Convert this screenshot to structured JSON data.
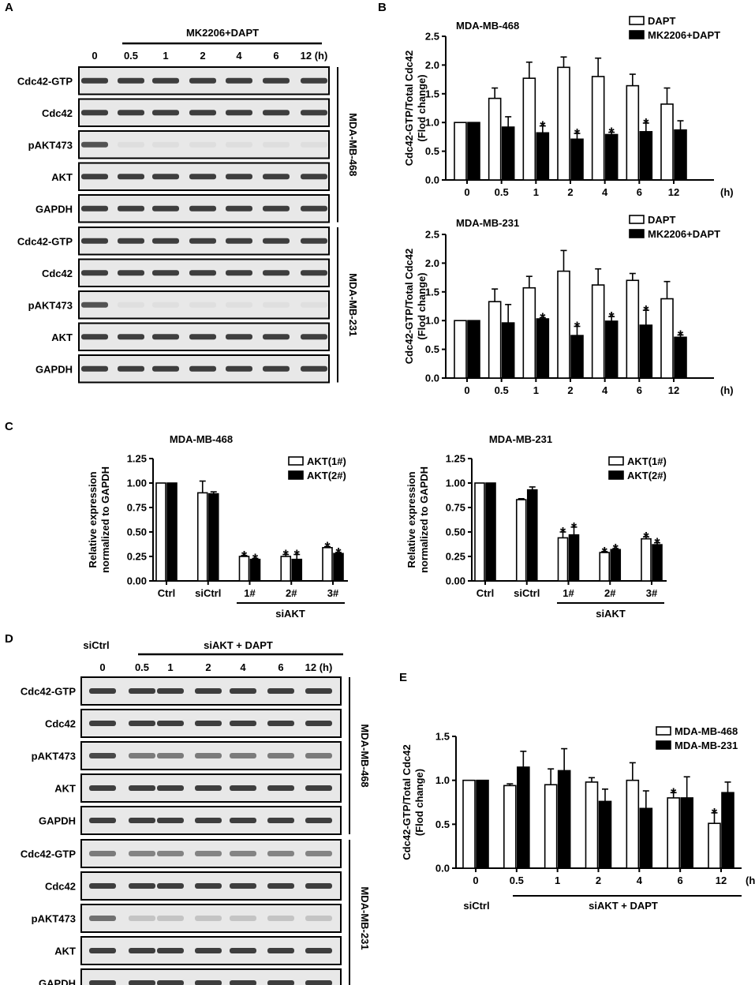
{
  "panels": {
    "A": {
      "letter": "A",
      "treatment": "MK2206+DAPT",
      "lanes": [
        "0",
        "0.5",
        "1",
        "2",
        "4",
        "6",
        "12 (h)"
      ],
      "rows_468": [
        "Cdc42-GTP",
        "Cdc42",
        "pAKT473",
        "AKT",
        "GAPDH"
      ],
      "rows_231": [
        "Cdc42-GTP",
        "Cdc42",
        "pAKT473",
        "AKT",
        "GAPDH"
      ],
      "cell_468": "MDA-MB-468",
      "cell_231": "MDA-MB-231"
    },
    "B": {
      "letter": "B"
    },
    "C": {
      "letter": "C",
      "group_label": "siAKT"
    },
    "D": {
      "letter": "D",
      "control": "siCtrl",
      "treatment": "siAKT + DAPT",
      "lanes": [
        "0",
        "0.5",
        "1",
        "2",
        "4",
        "6",
        "12 (h)"
      ],
      "rows_468": [
        "Cdc42-GTP",
        "Cdc42",
        "pAKT473",
        "AKT",
        "GAPDH"
      ],
      "rows_231": [
        "Cdc42-GTP",
        "Cdc42",
        "pAKT473",
        "AKT",
        "GAPDH"
      ],
      "cell_468": "MDA-MB-468",
      "cell_231": "MDA-MB-231"
    },
    "E": {
      "letter": "E",
      "control": "siCtrl",
      "treatment": "siAKT + DAPT"
    }
  },
  "chart_data": [
    {
      "id": "B1",
      "type": "bar",
      "title": "MDA-MB-468",
      "ylabel": "Cdc42-GTP/Total Cdc42\n(Flod change)",
      "categories": [
        "0",
        "0.5",
        "1",
        "2",
        "4",
        "6",
        "12"
      ],
      "x_unit": "(h)",
      "ylim": [
        0,
        2.5
      ],
      "yticks": [
        "0.0",
        "0.5",
        "1.0",
        "1.5",
        "2.0",
        "2.5"
      ],
      "series": [
        {
          "name": "DAPT",
          "fill": "#ffffff",
          "values": [
            1.0,
            1.42,
            1.77,
            1.96,
            1.8,
            1.64,
            1.32
          ],
          "errors": [
            0,
            0.18,
            0.28,
            0.18,
            0.32,
            0.2,
            0.28
          ],
          "stars": []
        },
        {
          "name": "MK2206+DAPT",
          "fill": "#000000",
          "values": [
            1.0,
            0.92,
            0.82,
            0.71,
            0.79,
            0.84,
            0.87
          ],
          "errors": [
            0,
            0.18,
            0.12,
            0.1,
            0.04,
            0.15,
            0.16
          ],
          "stars": [
            2,
            3,
            4,
            5
          ]
        }
      ]
    },
    {
      "id": "B2",
      "type": "bar",
      "title": "MDA-MB-231",
      "ylabel": "Cdc42-GTP/Total Cdc42\n(Flod change)",
      "categories": [
        "0",
        "0.5",
        "1",
        "2",
        "4",
        "6",
        "12"
      ],
      "x_unit": "(h)",
      "ylim": [
        0,
        2.5
      ],
      "yticks": [
        "0.0",
        "0.5",
        "1.0",
        "1.5",
        "2.0",
        "2.5"
      ],
      "series": [
        {
          "name": "DAPT",
          "fill": "#ffffff",
          "values": [
            1.0,
            1.33,
            1.57,
            1.86,
            1.62,
            1.7,
            1.38
          ],
          "errors": [
            0,
            0.22,
            0.2,
            0.36,
            0.28,
            0.12,
            0.3
          ],
          "stars": []
        },
        {
          "name": "MK2206+DAPT",
          "fill": "#000000",
          "values": [
            1.0,
            0.96,
            1.03,
            0.74,
            0.99,
            0.92,
            0.71
          ],
          "errors": [
            0,
            0.32,
            0.02,
            0.16,
            0.08,
            0.26,
            0.04
          ],
          "stars": [
            2,
            3,
            4,
            5,
            6
          ]
        }
      ]
    },
    {
      "id": "C1",
      "type": "bar",
      "title": "MDA-MB-468",
      "ylabel": "Relative expression\nnormalized to GAPDH",
      "categories": [
        "Ctrl",
        "siCtrl",
        "1#",
        "2#",
        "3#"
      ],
      "ylim": [
        0,
        1.25
      ],
      "yticks": [
        "0.00",
        "0.25",
        "0.50",
        "0.75",
        "1.00",
        "1.25"
      ],
      "series": [
        {
          "name": "AKT(1#)",
          "fill": "#ffffff",
          "values": [
            1.0,
            0.9,
            0.25,
            0.25,
            0.34
          ],
          "errors": [
            0,
            0.12,
            0.01,
            0.02,
            0.01
          ],
          "stars": [
            2,
            3,
            4
          ]
        },
        {
          "name": "AKT(2#)",
          "fill": "#000000",
          "values": [
            1.0,
            0.89,
            0.22,
            0.22,
            0.28
          ],
          "errors": [
            0,
            0.02,
            0.01,
            0.05,
            0.01
          ],
          "stars": [
            2,
            3,
            4
          ]
        }
      ]
    },
    {
      "id": "C2",
      "type": "bar",
      "title": "MDA-MB-231",
      "ylabel": "Relative expression\nnormalized to GAPDH",
      "categories": [
        "Ctrl",
        "siCtrl",
        "1#",
        "2#",
        "3#"
      ],
      "ylim": [
        0,
        1.25
      ],
      "yticks": [
        "0.00",
        "0.25",
        "0.50",
        "0.75",
        "1.00",
        "1.25"
      ],
      "series": [
        {
          "name": "AKT(1#)",
          "fill": "#ffffff",
          "values": [
            1.0,
            0.83,
            0.44,
            0.29,
            0.43
          ],
          "errors": [
            0,
            0.01,
            0.06,
            0.01,
            0.02
          ],
          "stars": [
            2,
            3,
            4
          ]
        },
        {
          "name": "AKT(2#)",
          "fill": "#000000",
          "values": [
            1.0,
            0.93,
            0.47,
            0.32,
            0.37
          ],
          "errors": [
            0,
            0.03,
            0.08,
            0.01,
            0.02
          ],
          "stars": [
            2,
            3,
            4
          ]
        }
      ]
    },
    {
      "id": "E",
      "type": "bar",
      "title": "",
      "ylabel": "Cdc42-GTP/Total Cdc42\n(Flod change)",
      "categories": [
        "0",
        "0.5",
        "1",
        "2",
        "4",
        "6",
        "12"
      ],
      "x_unit": "(h)",
      "ylim": [
        0,
        1.5
      ],
      "yticks": [
        "0.0",
        "0.5",
        "1.0",
        "1.5"
      ],
      "series": [
        {
          "name": "MDA-MB-468",
          "fill": "#ffffff",
          "values": [
            1.0,
            0.94,
            0.95,
            0.98,
            1.0,
            0.8,
            0.51
          ],
          "errors": [
            0,
            0.02,
            0.18,
            0.05,
            0.2,
            0.06,
            0.12
          ],
          "stars": [
            5,
            6
          ]
        },
        {
          "name": "MDA-MB-231",
          "fill": "#000000",
          "values": [
            1.0,
            1.15,
            1.11,
            0.76,
            0.68,
            0.8,
            0.86
          ],
          "errors": [
            0,
            0.18,
            0.25,
            0.14,
            0.2,
            0.24,
            0.12
          ],
          "stars": []
        }
      ]
    }
  ]
}
